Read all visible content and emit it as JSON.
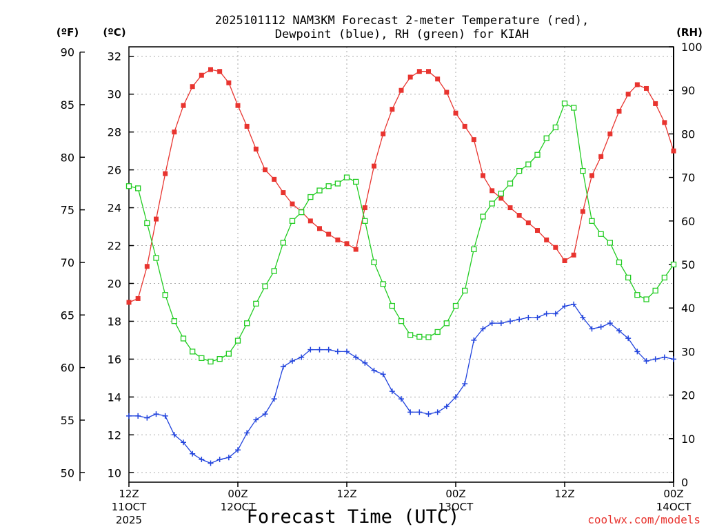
{
  "chart_data": {
    "type": "line",
    "title_line1": "2025101112 NAM3KM Forecast 2-meter Temperature (red),",
    "title_line2": "Dewpoint (blue), RH (green) for KIAH",
    "xlabel": "Forecast Time (UTC)",
    "credit": "coolwx.com/models",
    "units": {
      "fahrenheit": "(ºF)",
      "celsius": "(ºC)",
      "rh": "(RH)"
    },
    "x_range": [
      0,
      60
    ],
    "celsius_range": [
      9.5,
      32.5
    ],
    "rh_range": [
      0,
      100
    ],
    "fahrenheit_ticks": [
      50,
      55,
      60,
      65,
      70,
      75,
      80,
      85,
      90
    ],
    "celsius_ticks": [
      10,
      12,
      14,
      16,
      18,
      20,
      22,
      24,
      26,
      28,
      30,
      32
    ],
    "rh_ticks": [
      0,
      10,
      20,
      30,
      40,
      50,
      60,
      70,
      80,
      90,
      100
    ],
    "x_ticks": [
      {
        "x": 0,
        "lines": [
          "12Z",
          "11OCT",
          "2025"
        ]
      },
      {
        "x": 12,
        "lines": [
          "00Z",
          "12OCT"
        ]
      },
      {
        "x": 24,
        "lines": [
          "12Z"
        ]
      },
      {
        "x": 36,
        "lines": [
          "00Z",
          "13OCT"
        ]
      },
      {
        "x": 48,
        "lines": [
          "12Z"
        ]
      },
      {
        "x": 60,
        "lines": [
          "00Z",
          "14OCT"
        ]
      }
    ],
    "series": [
      {
        "name": "2-meter Temperature",
        "color": "#e8342f",
        "axis": "celsius",
        "marker": "filled-square",
        "x": [
          0,
          1,
          2,
          3,
          4,
          5,
          6,
          7,
          8,
          9,
          10,
          11,
          12,
          13,
          14,
          15,
          16,
          17,
          18,
          19,
          20,
          21,
          22,
          23,
          24,
          25,
          26,
          27,
          28,
          29,
          30,
          31,
          32,
          33,
          34,
          35,
          36,
          37,
          38,
          39,
          40,
          41,
          42,
          43,
          44,
          45,
          46,
          47,
          48,
          49,
          50,
          51,
          52,
          53,
          54,
          55,
          56,
          57,
          58,
          59,
          60
        ],
        "values": [
          19.0,
          19.2,
          20.9,
          23.4,
          25.8,
          28.0,
          29.4,
          30.4,
          31.0,
          31.3,
          31.2,
          30.6,
          29.4,
          28.3,
          27.1,
          26.0,
          25.5,
          24.8,
          24.2,
          23.8,
          23.3,
          22.9,
          22.6,
          22.3,
          22.1,
          21.8,
          24.0,
          26.2,
          27.9,
          29.2,
          30.2,
          30.9,
          31.2,
          31.2,
          30.8,
          30.1,
          29.0,
          28.3,
          27.6,
          25.7,
          24.9,
          24.5,
          24.0,
          23.6,
          23.2,
          22.8,
          22.3,
          21.9,
          21.2,
          21.5,
          23.8,
          25.7,
          26.7,
          27.9,
          29.1,
          30.0,
          30.5,
          30.3,
          29.5,
          28.5,
          27.0
        ]
      },
      {
        "name": "Dewpoint",
        "color": "#2244dd",
        "axis": "celsius",
        "marker": "plus",
        "x": [
          0,
          1,
          2,
          3,
          4,
          5,
          6,
          7,
          8,
          9,
          10,
          11,
          12,
          13,
          14,
          15,
          16,
          17,
          18,
          19,
          20,
          21,
          22,
          23,
          24,
          25,
          26,
          27,
          28,
          29,
          30,
          31,
          32,
          33,
          34,
          35,
          36,
          37,
          38,
          39,
          40,
          41,
          42,
          43,
          44,
          45,
          46,
          47,
          48,
          49,
          50,
          51,
          52,
          53,
          54,
          55,
          56,
          57,
          58,
          59,
          60
        ],
        "values": [
          13.0,
          13.0,
          12.9,
          13.1,
          13.0,
          12.0,
          11.6,
          11.0,
          10.7,
          10.5,
          10.7,
          10.8,
          11.2,
          12.1,
          12.8,
          13.1,
          13.9,
          15.6,
          15.9,
          16.1,
          16.5,
          16.5,
          16.5,
          16.4,
          16.4,
          16.1,
          15.8,
          15.4,
          15.2,
          14.3,
          13.9,
          13.2,
          13.2,
          13.1,
          13.2,
          13.5,
          14.0,
          14.7,
          17.0,
          17.6,
          17.9,
          17.9,
          18.0,
          18.1,
          18.2,
          18.2,
          18.4,
          18.4,
          18.8,
          18.9,
          18.2,
          17.6,
          17.7,
          17.9,
          17.5,
          17.1,
          16.4,
          15.9,
          16.0,
          16.1,
          16.0
        ]
      },
      {
        "name": "RH",
        "color": "#22cc22",
        "axis": "rh",
        "marker": "open-square",
        "x": [
          0,
          1,
          2,
          3,
          4,
          5,
          6,
          7,
          8,
          9,
          10,
          11,
          12,
          13,
          14,
          15,
          16,
          17,
          18,
          19,
          20,
          21,
          22,
          23,
          24,
          25,
          26,
          27,
          28,
          29,
          30,
          31,
          32,
          33,
          34,
          35,
          36,
          37,
          38,
          39,
          40,
          41,
          42,
          43,
          44,
          45,
          46,
          47,
          48,
          49,
          50,
          51,
          52,
          53,
          54,
          55,
          56,
          57,
          58,
          59,
          60
        ],
        "values": [
          68.0,
          67.5,
          59.5,
          51.5,
          43.0,
          37.0,
          33.0,
          30.0,
          28.5,
          27.7,
          28.3,
          29.5,
          32.5,
          36.5,
          41.0,
          45.0,
          48.5,
          55.0,
          60.0,
          62.0,
          65.5,
          67.0,
          68.0,
          68.6,
          70.0,
          69.0,
          60.0,
          50.5,
          45.5,
          40.5,
          37.0,
          33.8,
          33.4,
          33.3,
          34.5,
          36.5,
          40.5,
          44.0,
          53.5,
          61.0,
          64.0,
          66.3,
          68.6,
          71.5,
          73.0,
          75.2,
          79.0,
          81.5,
          87.0,
          86.0,
          71.5,
          60.0,
          57.0,
          55.0,
          50.5,
          47.0,
          43.0,
          42.0,
          44.0,
          47.0,
          50.0
        ]
      }
    ]
  }
}
